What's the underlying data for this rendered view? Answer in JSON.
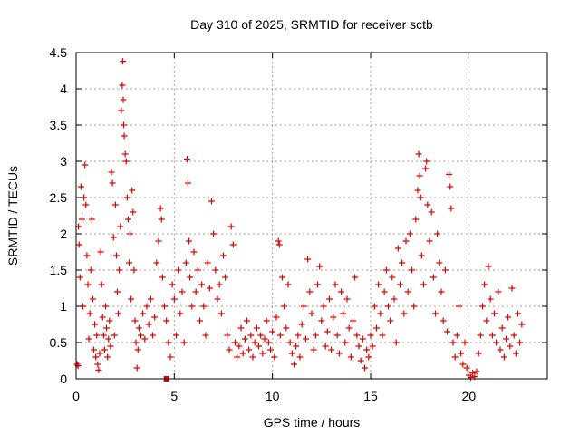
{
  "chart_data": {
    "type": "scatter",
    "title": "Day 310 of 2025, SRMTID for receiver sctb",
    "xlabel": "GPS time / hours",
    "ylabel": "SRMTID / TECUs",
    "xlim": [
      0,
      24
    ],
    "ylim": [
      0,
      4.5
    ],
    "grid": true,
    "marker": "+",
    "series_color": "#e00000",
    "xticks": [
      0,
      5,
      10,
      15,
      20
    ],
    "xtick_labels": [
      "0",
      "5",
      "10",
      "15",
      "20"
    ],
    "yticks": [
      0,
      0.5,
      1,
      1.5,
      2,
      2.5,
      3,
      3.5,
      4,
      4.5
    ],
    "ytick_labels": [
      "0",
      "0.5",
      "1",
      "1.5",
      "2",
      "2.5",
      "3",
      "3.5",
      "4",
      "4.5"
    ],
    "series": [
      {
        "name": "SRMTID",
        "points": [
          [
            0.05,
            0.2
          ],
          [
            0.1,
            0.18
          ],
          [
            0.12,
            2.1
          ],
          [
            0.15,
            1.85
          ],
          [
            0.2,
            1.4
          ],
          [
            0.25,
            2.65
          ],
          [
            0.3,
            2.2
          ],
          [
            0.35,
            1.0
          ],
          [
            0.4,
            2.5
          ],
          [
            0.45,
            2.95
          ],
          [
            0.5,
            2.4
          ],
          [
            0.55,
            1.7
          ],
          [
            0.6,
            1.3
          ],
          [
            0.65,
            0.55
          ],
          [
            0.7,
            0.9
          ],
          [
            0.75,
            1.5
          ],
          [
            0.8,
            2.2
          ],
          [
            0.85,
            1.1
          ],
          [
            0.9,
            0.4
          ],
          [
            0.95,
            0.75
          ],
          [
            1.0,
            0.3
          ],
          [
            1.05,
            0.6
          ],
          [
            1.1,
            0.2
          ],
          [
            1.15,
            0.12
          ],
          [
            1.2,
            0.35
          ],
          [
            1.25,
            1.75
          ],
          [
            1.3,
            1.3
          ],
          [
            1.35,
            0.85
          ],
          [
            1.4,
            0.6
          ],
          [
            1.45,
            0.4
          ],
          [
            1.5,
            1.0
          ],
          [
            1.55,
            0.7
          ],
          [
            1.6,
            0.3
          ],
          [
            1.65,
            0.55
          ],
          [
            1.7,
            0.8
          ],
          [
            1.75,
            0.45
          ],
          [
            1.8,
            2.85
          ],
          [
            1.85,
            2.7
          ],
          [
            1.9,
            1.95
          ],
          [
            1.95,
            0.6
          ],
          [
            2.0,
            2.4
          ],
          [
            2.05,
            1.7
          ],
          [
            2.1,
            1.2
          ],
          [
            2.15,
            0.9
          ],
          [
            2.2,
            1.5
          ],
          [
            2.25,
            2.1
          ],
          [
            2.3,
            3.7
          ],
          [
            2.35,
            4.05
          ],
          [
            2.38,
            4.38
          ],
          [
            2.4,
            3.85
          ],
          [
            2.42,
            3.5
          ],
          [
            2.45,
            3.35
          ],
          [
            2.5,
            3.1
          ],
          [
            2.55,
            3.0
          ],
          [
            2.6,
            2.5
          ],
          [
            2.65,
            2.2
          ],
          [
            2.7,
            1.6
          ],
          [
            2.75,
            2.0
          ],
          [
            2.8,
            1.1
          ],
          [
            2.85,
            2.6
          ],
          [
            2.9,
            2.3
          ],
          [
            2.95,
            1.5
          ],
          [
            3.0,
            0.8
          ],
          [
            3.05,
            0.5
          ],
          [
            3.1,
            0.15
          ],
          [
            3.15,
            0.4
          ],
          [
            3.2,
            0.7
          ],
          [
            3.3,
            0.6
          ],
          [
            3.4,
            0.9
          ],
          [
            3.5,
            0.55
          ],
          [
            3.6,
            1.0
          ],
          [
            3.7,
            0.75
          ],
          [
            3.8,
            1.1
          ],
          [
            3.9,
            0.6
          ],
          [
            4.0,
            0.85
          ],
          [
            4.1,
            1.6
          ],
          [
            4.2,
            1.9
          ],
          [
            4.3,
            2.35
          ],
          [
            4.35,
            2.2
          ],
          [
            4.4,
            1.4
          ],
          [
            4.5,
            1.0
          ],
          [
            4.6,
            0.8
          ],
          [
            4.7,
            0.5
          ],
          [
            4.8,
            0.3
          ],
          [
            4.9,
            1.3
          ],
          [
            5.0,
            1.1
          ],
          [
            5.1,
            0.6
          ],
          [
            5.2,
            1.5
          ],
          [
            5.3,
            0.9
          ],
          [
            5.4,
            1.2
          ],
          [
            5.5,
            0.5
          ],
          [
            5.6,
            1.6
          ],
          [
            5.65,
            3.03
          ],
          [
            5.7,
            2.7
          ],
          [
            5.75,
            1.9
          ],
          [
            5.8,
            1.4
          ],
          [
            5.9,
            1.0
          ],
          [
            6.0,
            1.75
          ],
          [
            6.1,
            1.2
          ],
          [
            6.2,
            1.5
          ],
          [
            6.3,
            0.8
          ],
          [
            6.4,
            1.3
          ],
          [
            6.5,
            1.0
          ],
          [
            6.6,
            0.6
          ],
          [
            6.7,
            1.6
          ],
          [
            6.8,
            1.25
          ],
          [
            6.9,
            2.45
          ],
          [
            7.0,
            2.0
          ],
          [
            7.1,
            1.5
          ],
          [
            7.2,
            1.1
          ],
          [
            7.3,
            1.3
          ],
          [
            7.4,
            0.9
          ],
          [
            7.5,
            1.7
          ],
          [
            7.6,
            1.4
          ],
          [
            7.7,
            0.6
          ],
          [
            7.8,
            0.4
          ],
          [
            7.9,
            2.1
          ],
          [
            8.0,
            1.85
          ],
          [
            8.1,
            0.5
          ],
          [
            8.2,
            0.3
          ],
          [
            8.3,
            0.45
          ],
          [
            8.4,
            0.7
          ],
          [
            8.5,
            0.35
          ],
          [
            8.6,
            0.55
          ],
          [
            8.7,
            0.8
          ],
          [
            8.8,
            0.4
          ],
          [
            8.9,
            0.6
          ],
          [
            9.0,
            0.3
          ],
          [
            9.1,
            0.5
          ],
          [
            9.2,
            0.7
          ],
          [
            9.3,
            0.45
          ],
          [
            9.4,
            0.6
          ],
          [
            9.5,
            0.35
          ],
          [
            9.6,
            0.55
          ],
          [
            9.7,
            0.8
          ],
          [
            9.8,
            0.5
          ],
          [
            9.9,
            0.4
          ],
          [
            10.0,
            0.65
          ],
          [
            10.1,
            0.3
          ],
          [
            10.2,
            0.85
          ],
          [
            10.3,
            1.9
          ],
          [
            10.35,
            1.85
          ],
          [
            10.4,
            0.6
          ],
          [
            10.5,
            1.4
          ],
          [
            10.6,
            1.0
          ],
          [
            10.7,
            0.7
          ],
          [
            10.8,
            1.3
          ],
          [
            10.9,
            0.5
          ],
          [
            11.0,
            0.35
          ],
          [
            11.1,
            0.2
          ],
          [
            11.2,
            0.45
          ],
          [
            11.3,
            0.6
          ],
          [
            11.4,
            0.3
          ],
          [
            11.5,
            0.75
          ],
          [
            11.6,
            1.0
          ],
          [
            11.7,
            0.55
          ],
          [
            11.8,
            1.65
          ],
          [
            11.9,
            1.2
          ],
          [
            12.0,
            0.9
          ],
          [
            12.1,
            0.4
          ],
          [
            12.2,
            0.6
          ],
          [
            12.3,
            1.3
          ],
          [
            12.4,
            1.55
          ],
          [
            12.5,
            0.8
          ],
          [
            12.6,
            1.0
          ],
          [
            12.7,
            0.45
          ],
          [
            12.8,
            0.65
          ],
          [
            12.9,
            1.1
          ],
          [
            13.0,
            0.4
          ],
          [
            13.1,
            0.85
          ],
          [
            13.2,
            1.3
          ],
          [
            13.3,
            0.6
          ],
          [
            13.4,
            0.35
          ],
          [
            13.5,
            1.2
          ],
          [
            13.6,
            0.9
          ],
          [
            13.7,
            0.5
          ],
          [
            13.8,
            1.1
          ],
          [
            13.9,
            0.7
          ],
          [
            14.0,
            0.3
          ],
          [
            14.1,
            0.8
          ],
          [
            14.2,
            1.4
          ],
          [
            14.3,
            0.6
          ],
          [
            14.4,
            0.45
          ],
          [
            14.5,
            0.25
          ],
          [
            14.6,
            0.55
          ],
          [
            14.7,
            0.15
          ],
          [
            14.8,
            0.4
          ],
          [
            14.9,
            0.3
          ],
          [
            15.0,
            0.6
          ],
          [
            15.1,
            0.45
          ],
          [
            15.2,
            1.0
          ],
          [
            15.3,
            0.7
          ],
          [
            15.4,
            1.3
          ],
          [
            15.5,
            0.9
          ],
          [
            15.6,
            0.6
          ],
          [
            15.7,
            1.2
          ],
          [
            15.8,
            1.5
          ],
          [
            15.9,
            1.0
          ],
          [
            16.0,
            0.8
          ],
          [
            16.1,
            1.4
          ],
          [
            16.2,
            1.1
          ],
          [
            16.3,
            0.5
          ],
          [
            16.4,
            1.8
          ],
          [
            16.5,
            1.3
          ],
          [
            16.6,
            1.6
          ],
          [
            16.7,
            0.9
          ],
          [
            16.8,
            1.9
          ],
          [
            16.9,
            1.2
          ],
          [
            17.0,
            2.0
          ],
          [
            17.1,
            1.5
          ],
          [
            17.2,
            1.0
          ],
          [
            17.3,
            2.2
          ],
          [
            17.4,
            2.6
          ],
          [
            17.45,
            3.1
          ],
          [
            17.5,
            2.8
          ],
          [
            17.55,
            2.5
          ],
          [
            17.6,
            1.7
          ],
          [
            17.7,
            1.3
          ],
          [
            17.8,
            2.9
          ],
          [
            17.85,
            3.0
          ],
          [
            17.9,
            2.4
          ],
          [
            18.0,
            1.9
          ],
          [
            18.1,
            2.3
          ],
          [
            18.2,
            1.4
          ],
          [
            18.3,
            0.9
          ],
          [
            18.4,
            2.0
          ],
          [
            18.5,
            1.6
          ],
          [
            18.6,
            1.2
          ],
          [
            18.7,
            0.8
          ],
          [
            18.8,
            1.5
          ],
          [
            18.9,
            0.65
          ],
          [
            19.0,
            2.82
          ],
          [
            19.05,
            2.65
          ],
          [
            19.1,
            2.35
          ],
          [
            19.2,
            0.5
          ],
          [
            19.3,
            0.3
          ],
          [
            19.4,
            0.6
          ],
          [
            19.5,
            1.0
          ],
          [
            19.6,
            0.35
          ],
          [
            19.7,
            0.2
          ],
          [
            19.8,
            0.5
          ],
          [
            19.9,
            0.15
          ],
          [
            20.0,
            0.05
          ],
          [
            20.1,
            0.02
          ],
          [
            20.2,
            0.08
          ],
          [
            20.3,
            0.03
          ],
          [
            20.4,
            0.1
          ],
          [
            20.5,
            0.35
          ],
          [
            20.6,
            0.6
          ],
          [
            20.7,
            1.0
          ],
          [
            20.8,
            1.3
          ],
          [
            20.9,
            0.8
          ],
          [
            21.0,
            1.55
          ],
          [
            21.1,
            1.1
          ],
          [
            21.2,
            0.6
          ],
          [
            21.3,
            0.9
          ],
          [
            21.4,
            0.5
          ],
          [
            21.5,
            1.2
          ],
          [
            21.6,
            0.4
          ],
          [
            21.7,
            0.7
          ],
          [
            21.8,
            0.3
          ],
          [
            21.9,
            0.55
          ],
          [
            22.0,
            0.85
          ],
          [
            22.1,
            0.45
          ],
          [
            22.2,
            1.25
          ],
          [
            22.3,
            0.6
          ],
          [
            22.4,
            0.35
          ],
          [
            22.5,
            0.9
          ],
          [
            22.6,
            0.5
          ],
          [
            22.7,
            0.75
          ]
        ]
      }
    ],
    "special_marker": {
      "x": 4.6,
      "y": 0.0,
      "shape": "square"
    }
  }
}
